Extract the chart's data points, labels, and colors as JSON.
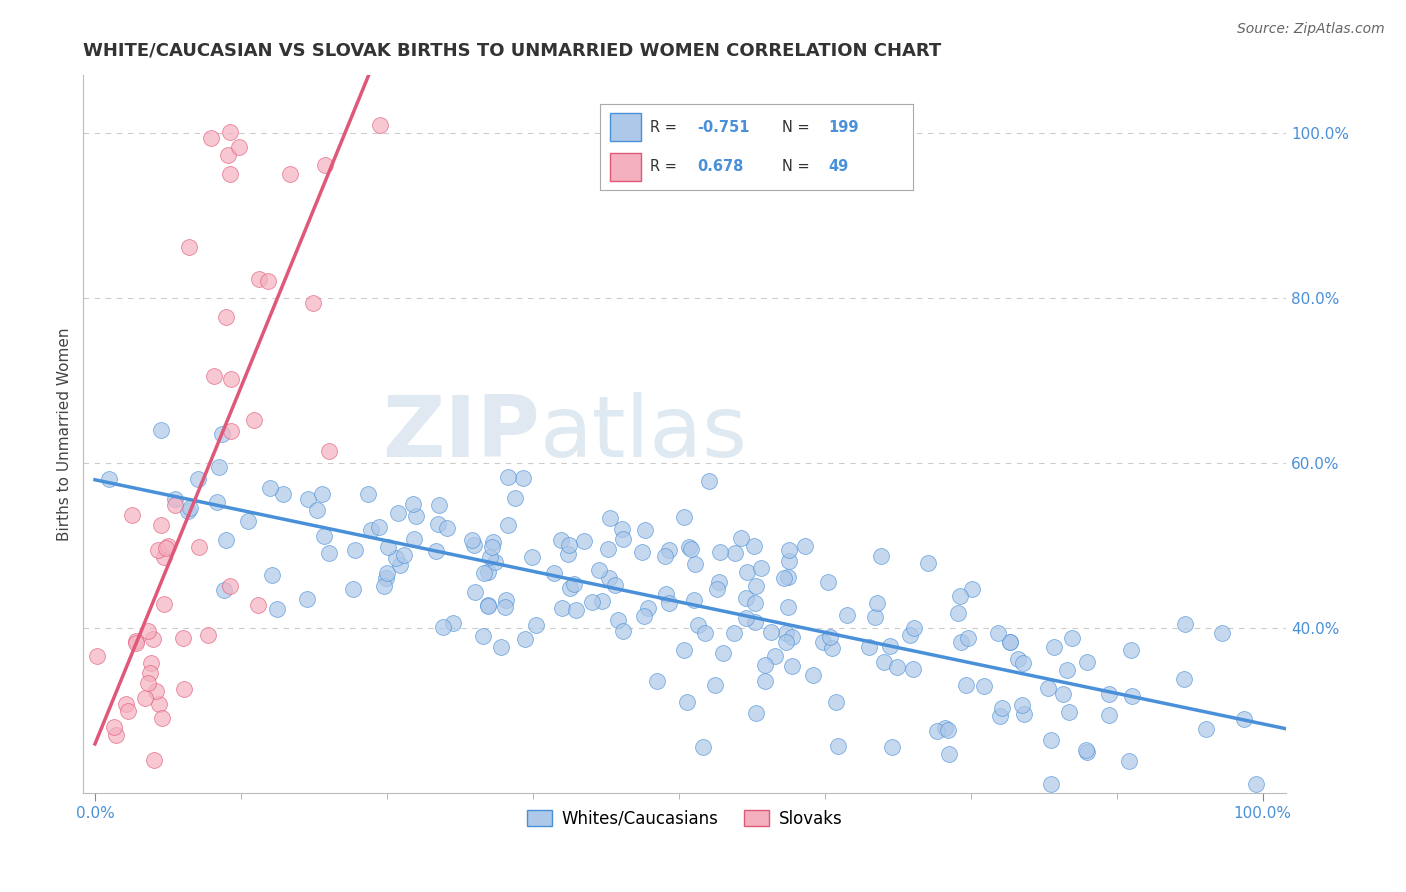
{
  "title": "WHITE/CAUCASIAN VS SLOVAK BIRTHS TO UNMARRIED WOMEN CORRELATION CHART",
  "source": "Source: ZipAtlas.com",
  "ylabel": "Births to Unmarried Women",
  "white_R": -0.751,
  "white_N": 199,
  "slovak_R": 0.678,
  "slovak_N": 49,
  "legend_white_label": "Whites/Caucasians",
  "legend_slovak_label": "Slovaks",
  "white_color": "#adc8e8",
  "slovak_color": "#f5b0c0",
  "white_line_color": "#4a90d9",
  "slovak_line_color": "#e05878",
  "watermark_zip": "ZIP",
  "watermark_atlas": "atlas",
  "background_color": "#ffffff",
  "title_color": "#333333",
  "axis_color": "#444444",
  "grid_color": "#cccccc",
  "title_fontsize": 13,
  "label_fontsize": 11,
  "tick_fontsize": 11,
  "source_fontsize": 10,
  "legend_fontsize": 12
}
